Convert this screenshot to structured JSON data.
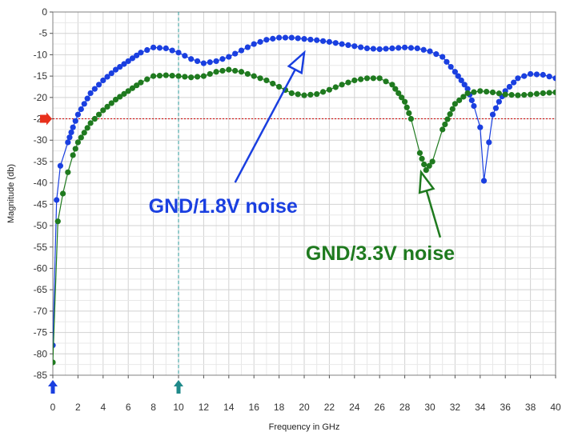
{
  "chart_data": {
    "type": "line",
    "xlabel": "Frequency in GHz",
    "ylabel": "Magnitude (db)",
    "xlim": [
      0,
      40
    ],
    "ylim": [
      -85,
      0
    ],
    "x_ticks": [
      0,
      2,
      4,
      6,
      8,
      10,
      12,
      14,
      16,
      18,
      20,
      22,
      24,
      26,
      28,
      30,
      32,
      34,
      36,
      38,
      40
    ],
    "y_ticks": [
      0,
      -5,
      -10,
      -15,
      -20,
      -25,
      -30,
      -35,
      -40,
      -45,
      -50,
      -55,
      -60,
      -65,
      -70,
      -75,
      -80,
      -85
    ],
    "grid": true,
    "markers": {
      "x_marker_blue": 0,
      "x_marker_teal": 10,
      "y_marker_red": -25
    },
    "reference_lines": [
      {
        "orientation": "horizontal",
        "value": -25,
        "color": "#cc0000",
        "style": "dotted"
      },
      {
        "orientation": "vertical",
        "value": 10,
        "color": "#2a9a9a",
        "style": "dashed"
      }
    ],
    "series": [
      {
        "name": "GND/1.8V noise",
        "color": "#1a3fe0",
        "points": [
          [
            0,
            -78
          ],
          [
            0.3,
            -44
          ],
          [
            0.6,
            -36
          ],
          [
            1.2,
            -30.5
          ],
          [
            1.6,
            -27
          ],
          [
            2,
            -24
          ],
          [
            3,
            -19
          ],
          [
            4,
            -16
          ],
          [
            5,
            -13.5
          ],
          [
            6,
            -11.5
          ],
          [
            7,
            -9.5
          ],
          [
            8,
            -8.3
          ],
          [
            9,
            -8.5
          ],
          [
            10,
            -9.5
          ],
          [
            11,
            -11
          ],
          [
            12,
            -12
          ],
          [
            13,
            -11.5
          ],
          [
            14,
            -10.5
          ],
          [
            15,
            -9
          ],
          [
            16,
            -7.5
          ],
          [
            17,
            -6.5
          ],
          [
            18,
            -6
          ],
          [
            19,
            -6
          ],
          [
            20,
            -6.3
          ],
          [
            21,
            -6.6
          ],
          [
            22,
            -7
          ],
          [
            23,
            -7.5
          ],
          [
            24,
            -8
          ],
          [
            25,
            -8.5
          ],
          [
            26,
            -8.7
          ],
          [
            27,
            -8.5
          ],
          [
            28,
            -8.3
          ],
          [
            29,
            -8.5
          ],
          [
            30,
            -9.2
          ],
          [
            31,
            -10.5
          ],
          [
            32,
            -14
          ],
          [
            33,
            -18
          ],
          [
            33.5,
            -22
          ],
          [
            34,
            -27
          ],
          [
            34.3,
            -39.5
          ],
          [
            34.7,
            -30.5
          ],
          [
            35,
            -24
          ],
          [
            35.5,
            -21
          ],
          [
            36,
            -18.5
          ],
          [
            37,
            -15.5
          ],
          [
            38,
            -14.5
          ],
          [
            39,
            -14.7
          ],
          [
            40,
            -15.5
          ]
        ]
      },
      {
        "name": "GND/3.3V noise",
        "color": "#1f7a1f",
        "points": [
          [
            0,
            -82
          ],
          [
            0.4,
            -49
          ],
          [
            0.8,
            -42.5
          ],
          [
            1.2,
            -37.5
          ],
          [
            1.6,
            -33.5
          ],
          [
            2,
            -30.5
          ],
          [
            3,
            -26
          ],
          [
            4,
            -23
          ],
          [
            5,
            -20.5
          ],
          [
            6,
            -18.5
          ],
          [
            7,
            -16.5
          ],
          [
            8,
            -15
          ],
          [
            9,
            -14.8
          ],
          [
            10,
            -15
          ],
          [
            11,
            -15.3
          ],
          [
            12,
            -15
          ],
          [
            13,
            -14
          ],
          [
            14,
            -13.5
          ],
          [
            15,
            -14
          ],
          [
            16,
            -15
          ],
          [
            17,
            -16
          ],
          [
            18,
            -17.5
          ],
          [
            19,
            -19
          ],
          [
            20,
            -19.5
          ],
          [
            21,
            -19.2
          ],
          [
            22,
            -18.2
          ],
          [
            23,
            -17
          ],
          [
            24,
            -16
          ],
          [
            25,
            -15.5
          ],
          [
            26,
            -15.5
          ],
          [
            27,
            -17
          ],
          [
            28,
            -21
          ],
          [
            28.5,
            -25
          ],
          [
            29.2,
            -33
          ],
          [
            29.7,
            -37
          ],
          [
            30.2,
            -35
          ],
          [
            31,
            -27.5
          ],
          [
            32,
            -21.5
          ],
          [
            33,
            -19
          ],
          [
            34,
            -18.5
          ],
          [
            35,
            -18.8
          ],
          [
            36,
            -19.3
          ],
          [
            37,
            -19.5
          ],
          [
            38,
            -19.3
          ],
          [
            39,
            -19
          ],
          [
            40,
            -18.8
          ]
        ]
      }
    ],
    "annotations": [
      {
        "text": "GND/1.8V noise",
        "series": "GND/1.8V noise",
        "anchor": [
          20,
          -9.5
        ],
        "label_at": [
          14.5,
          -47
        ],
        "color": "#1a3fe0"
      },
      {
        "text": "GND/3.3V noise",
        "series": "GND/3.3V noise",
        "anchor": [
          29.3,
          -37.5
        ],
        "label_at": [
          27,
          -58
        ],
        "color": "#1f7a1f"
      }
    ]
  }
}
